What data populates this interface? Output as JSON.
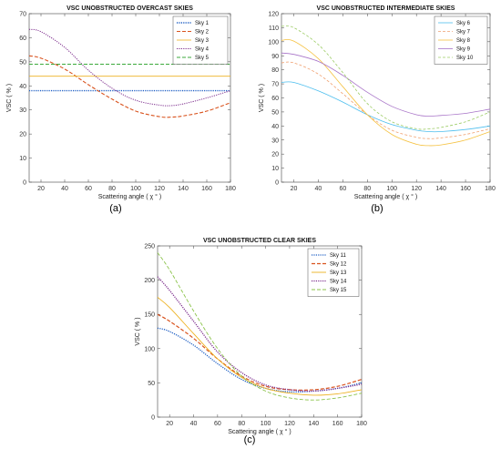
{
  "chart_data": [
    {
      "type": "line",
      "panel_label": "(a)",
      "title": "VSC UNOBSTRUCTED OVERCAST SKIES",
      "xlabel": "Scattering angle ( χ ° )",
      "ylabel": "VSC ( % )",
      "xlim": [
        10,
        180
      ],
      "ylim": [
        0,
        70
      ],
      "xticks": [
        20,
        40,
        60,
        80,
        100,
        120,
        140,
        160,
        180
      ],
      "yticks": [
        0,
        10,
        20,
        30,
        40,
        50,
        60,
        70
      ],
      "legend_position": "top-right",
      "x": [
        10,
        20,
        40,
        60,
        80,
        100,
        120,
        130,
        140,
        160,
        180
      ],
      "series": [
        {
          "name": "Sky 1",
          "color": "#1f5fc4",
          "dash": "1.2,1.2",
          "width": 1.4,
          "values": [
            38,
            38,
            38,
            38,
            38,
            38,
            38,
            38,
            38,
            38,
            38
          ]
        },
        {
          "name": "Sky 2",
          "color": "#d9531e",
          "dash": "4,2",
          "width": 1.1,
          "values": [
            52.5,
            51.5,
            47,
            40.5,
            34.5,
            29.5,
            27.2,
            27,
            27.5,
            29.5,
            33
          ]
        },
        {
          "name": "Sky 3",
          "color": "#edb120",
          "dash": "",
          "width": 0.8,
          "values": [
            44,
            44,
            44,
            44,
            44,
            44,
            44,
            44,
            44,
            44,
            44
          ]
        },
        {
          "name": "Sky 4",
          "color": "#7e2f8e",
          "dash": "1.2,1.2",
          "width": 1.0,
          "values": [
            63.5,
            62.5,
            56,
            46.5,
            39,
            34,
            32,
            31.8,
            32.5,
            35,
            38
          ]
        },
        {
          "name": "Sky 5",
          "color": "#3caa3c",
          "dash": "4,2",
          "width": 1.1,
          "values": [
            49,
            49,
            49,
            49,
            49,
            49,
            49,
            49,
            49,
            49,
            49
          ]
        }
      ]
    },
    {
      "type": "line",
      "panel_label": "(b)",
      "title": "VSC UNOBSTRUCTED INTERMEDIATE SKIES",
      "xlabel": "Scattering angle ( χ ° )",
      "ylabel": "VSC ( % )",
      "xlim": [
        10,
        180
      ],
      "ylim": [
        0,
        120
      ],
      "xticks": [
        20,
        40,
        60,
        80,
        100,
        120,
        140,
        160,
        180
      ],
      "yticks": [
        0,
        10,
        20,
        30,
        40,
        50,
        60,
        70,
        80,
        90,
        100,
        110,
        120
      ],
      "legend_position": "top-right",
      "x": [
        10,
        20,
        40,
        60,
        80,
        100,
        120,
        130,
        140,
        160,
        180
      ],
      "series": [
        {
          "name": "Sky 6",
          "color": "#4dbeee",
          "dash": "",
          "width": 0.8,
          "values": [
            71,
            71,
            65,
            57,
            48,
            41,
            37,
            36,
            36,
            37.5,
            40
          ]
        },
        {
          "name": "Sky 7",
          "color": "#f0a070",
          "dash": "3,2",
          "width": 0.8,
          "values": [
            85,
            85,
            77,
            63,
            48,
            37,
            32,
            31,
            31.5,
            34,
            38
          ]
        },
        {
          "name": "Sky 8",
          "color": "#f5c242",
          "dash": "",
          "width": 0.8,
          "values": [
            101,
            100.5,
            88,
            68,
            48,
            34,
            27,
            26,
            26.5,
            30,
            36
          ]
        },
        {
          "name": "Sky 9",
          "color": "#a874c8",
          "dash": "",
          "width": 0.8,
          "values": [
            92,
            91,
            86,
            76,
            64,
            54,
            48,
            47,
            47.5,
            49,
            52
          ]
        },
        {
          "name": "Sky 10",
          "color": "#9ccc65",
          "dash": "3,2",
          "width": 0.8,
          "values": [
            111,
            110,
            98,
            78,
            56,
            43,
            38,
            38,
            39,
            43,
            50
          ]
        }
      ]
    },
    {
      "type": "line",
      "panel_label": "(c)",
      "title": "VSC UNOBSTRUCTED CLEAR SKIES",
      "xlabel": "Scattering angle ( χ ° )",
      "ylabel": "VSC ( % )",
      "xlim": [
        10,
        180
      ],
      "ylim": [
        0,
        250
      ],
      "xticks": [
        20,
        40,
        60,
        80,
        100,
        120,
        140,
        160,
        180
      ],
      "yticks": [
        0,
        50,
        100,
        150,
        200,
        250
      ],
      "legend_position": "top-right",
      "x": [
        10,
        20,
        40,
        60,
        80,
        100,
        120,
        140,
        160,
        180
      ],
      "series": [
        {
          "name": "Sky 11",
          "color": "#1f5fc4",
          "dash": "1.2,1.2",
          "width": 1.3,
          "values": [
            130,
            125,
            105,
            78,
            55,
            42,
            37,
            38,
            42,
            50
          ]
        },
        {
          "name": "Sky 12",
          "color": "#d9531e",
          "dash": "4,2",
          "width": 1.2,
          "values": [
            150,
            140,
            115,
            85,
            60,
            45,
            40,
            40,
            45,
            55
          ]
        },
        {
          "name": "Sky 13",
          "color": "#edb120",
          "dash": "",
          "width": 0.9,
          "values": [
            175,
            160,
            122,
            85,
            58,
            42,
            35,
            32,
            34,
            40
          ]
        },
        {
          "name": "Sky 14",
          "color": "#7e2f8e",
          "dash": "1.2,1.2",
          "width": 1.3,
          "values": [
            205,
            185,
            140,
            95,
            65,
            47,
            40,
            38,
            42,
            48
          ]
        },
        {
          "name": "Sky 15",
          "color": "#8bc34a",
          "dash": "4,2",
          "width": 0.9,
          "values": [
            240,
            215,
            155,
            100,
            60,
            38,
            28,
            25,
            28,
            35
          ]
        }
      ]
    }
  ]
}
